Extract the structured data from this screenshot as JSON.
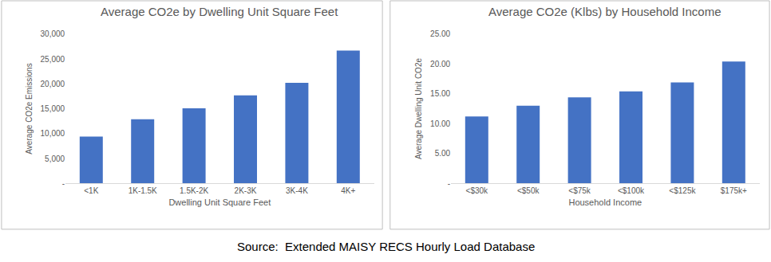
{
  "chart_data": [
    {
      "type": "bar",
      "title": "Average CO2e by Dwelling Unit Square Feet",
      "x_label": "Dwelling Unit Square Feet",
      "y_label": "Average CO2e Emissions",
      "categories": [
        "<1K",
        "1K-1.5K",
        "1.5K-2K",
        "2K-3K",
        "3K-4K",
        "4K+"
      ],
      "values": [
        9400,
        12900,
        15100,
        17700,
        20200,
        26700
      ],
      "color": "#4472c4",
      "ylim": [
        0,
        30000
      ],
      "yticks": [
        {
          "value": 0,
          "label": "-"
        },
        {
          "value": 5000,
          "label": "5,000"
        },
        {
          "value": 10000,
          "label": "10,000"
        },
        {
          "value": 15000,
          "label": "15,000"
        },
        {
          "value": 20000,
          "label": "20,000"
        },
        {
          "value": 25000,
          "label": "25,000"
        },
        {
          "value": 30000,
          "label": "30,000"
        }
      ],
      "grid": false
    },
    {
      "type": "bar",
      "title": "Average CO2e (Klbs) by Household Income",
      "x_label": "Household Income",
      "y_label": "Average Dwelling Unit CO2e",
      "categories": [
        "<$30k",
        "<$50k",
        "<$75k",
        "<$100k",
        "<$125k",
        "$175k+"
      ],
      "values": [
        11.2,
        13.0,
        14.4,
        15.4,
        16.9,
        20.4
      ],
      "color": "#4472c4",
      "ylim": [
        0,
        25
      ],
      "yticks": [
        {
          "value": 0,
          "label": "-"
        },
        {
          "value": 5,
          "label": "5.00"
        },
        {
          "value": 10,
          "label": "10.00"
        },
        {
          "value": 15,
          "label": "15.00"
        },
        {
          "value": 20,
          "label": "20.00"
        },
        {
          "value": 25,
          "label": "25.00"
        }
      ],
      "grid": false
    }
  ],
  "caption": "Source:  Extended MAISY RECS Hourly Load Database"
}
